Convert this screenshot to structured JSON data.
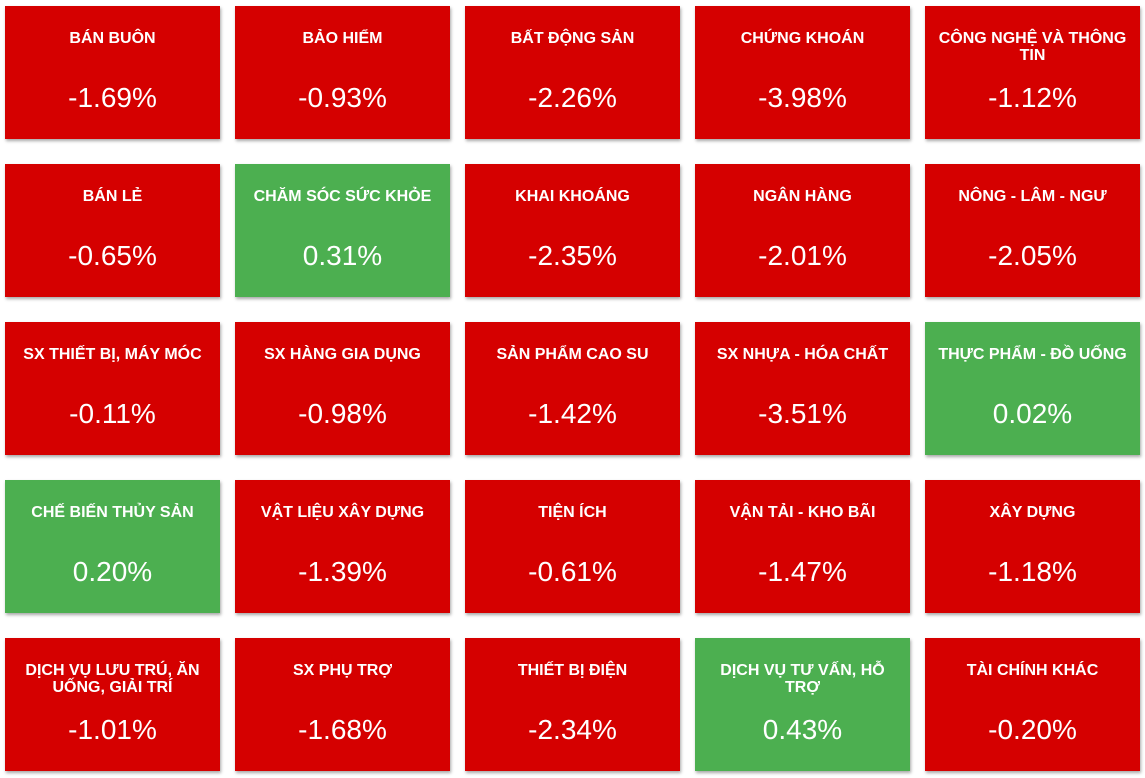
{
  "chart_data": {
    "type": "heatmap",
    "colors": {
      "negative": "#d50000",
      "positive": "#4caf50"
    },
    "cells": [
      {
        "label": "BÁN BUÔN",
        "value": -1.69,
        "display": "-1.69%"
      },
      {
        "label": "BẢO HIỂM",
        "value": -0.93,
        "display": "-0.93%"
      },
      {
        "label": "BẤT ĐỘNG SẢN",
        "value": -2.26,
        "display": "-2.26%"
      },
      {
        "label": "CHỨNG KHOÁN",
        "value": -3.98,
        "display": "-3.98%"
      },
      {
        "label": "CÔNG NGHỆ VÀ THÔNG TIN",
        "value": -1.12,
        "display": "-1.12%"
      },
      {
        "label": "BÁN LẺ",
        "value": -0.65,
        "display": "-0.65%"
      },
      {
        "label": "CHĂM SÓC SỨC KHỎE",
        "value": 0.31,
        "display": "0.31%"
      },
      {
        "label": "KHAI KHOÁNG",
        "value": -2.35,
        "display": "-2.35%"
      },
      {
        "label": "NGÂN HÀNG",
        "value": -2.01,
        "display": "-2.01%"
      },
      {
        "label": "NÔNG - LÂM - NGƯ",
        "value": -2.05,
        "display": "-2.05%"
      },
      {
        "label": "SX THIẾT BỊ, MÁY MÓC",
        "value": -0.11,
        "display": "-0.11%"
      },
      {
        "label": "SX HÀNG GIA DỤNG",
        "value": -0.98,
        "display": "-0.98%"
      },
      {
        "label": "SẢN PHẨM CAO SU",
        "value": -1.42,
        "display": "-1.42%"
      },
      {
        "label": "SX NHỰA - HÓA CHẤT",
        "value": -3.51,
        "display": "-3.51%"
      },
      {
        "label": "THỰC PHẨM - ĐỒ UỐNG",
        "value": 0.02,
        "display": "0.02%"
      },
      {
        "label": "CHẾ BIẾN THỦY SẢN",
        "value": 0.2,
        "display": "0.20%"
      },
      {
        "label": "VẬT LIỆU XÂY DỰNG",
        "value": -1.39,
        "display": "-1.39%"
      },
      {
        "label": "TIỆN ÍCH",
        "value": -0.61,
        "display": "-0.61%"
      },
      {
        "label": "VẬN TẢI - KHO BÃI",
        "value": -1.47,
        "display": "-1.47%"
      },
      {
        "label": "XÂY DỰNG",
        "value": -1.18,
        "display": "-1.18%"
      },
      {
        "label": "DỊCH VỤ LƯU TRÚ, ĂN UỐNG, GIẢI TRÍ",
        "value": -1.01,
        "display": "-1.01%"
      },
      {
        "label": "SX PHỤ TRỢ",
        "value": -1.68,
        "display": "-1.68%"
      },
      {
        "label": "THIẾT BỊ ĐIỆN",
        "value": -2.34,
        "display": "-2.34%"
      },
      {
        "label": "DỊCH VỤ TƯ VẤN, HỖ TRỢ",
        "value": 0.43,
        "display": "0.43%"
      },
      {
        "label": "TÀI CHÍNH KHÁC",
        "value": -0.2,
        "display": "-0.20%"
      }
    ]
  }
}
